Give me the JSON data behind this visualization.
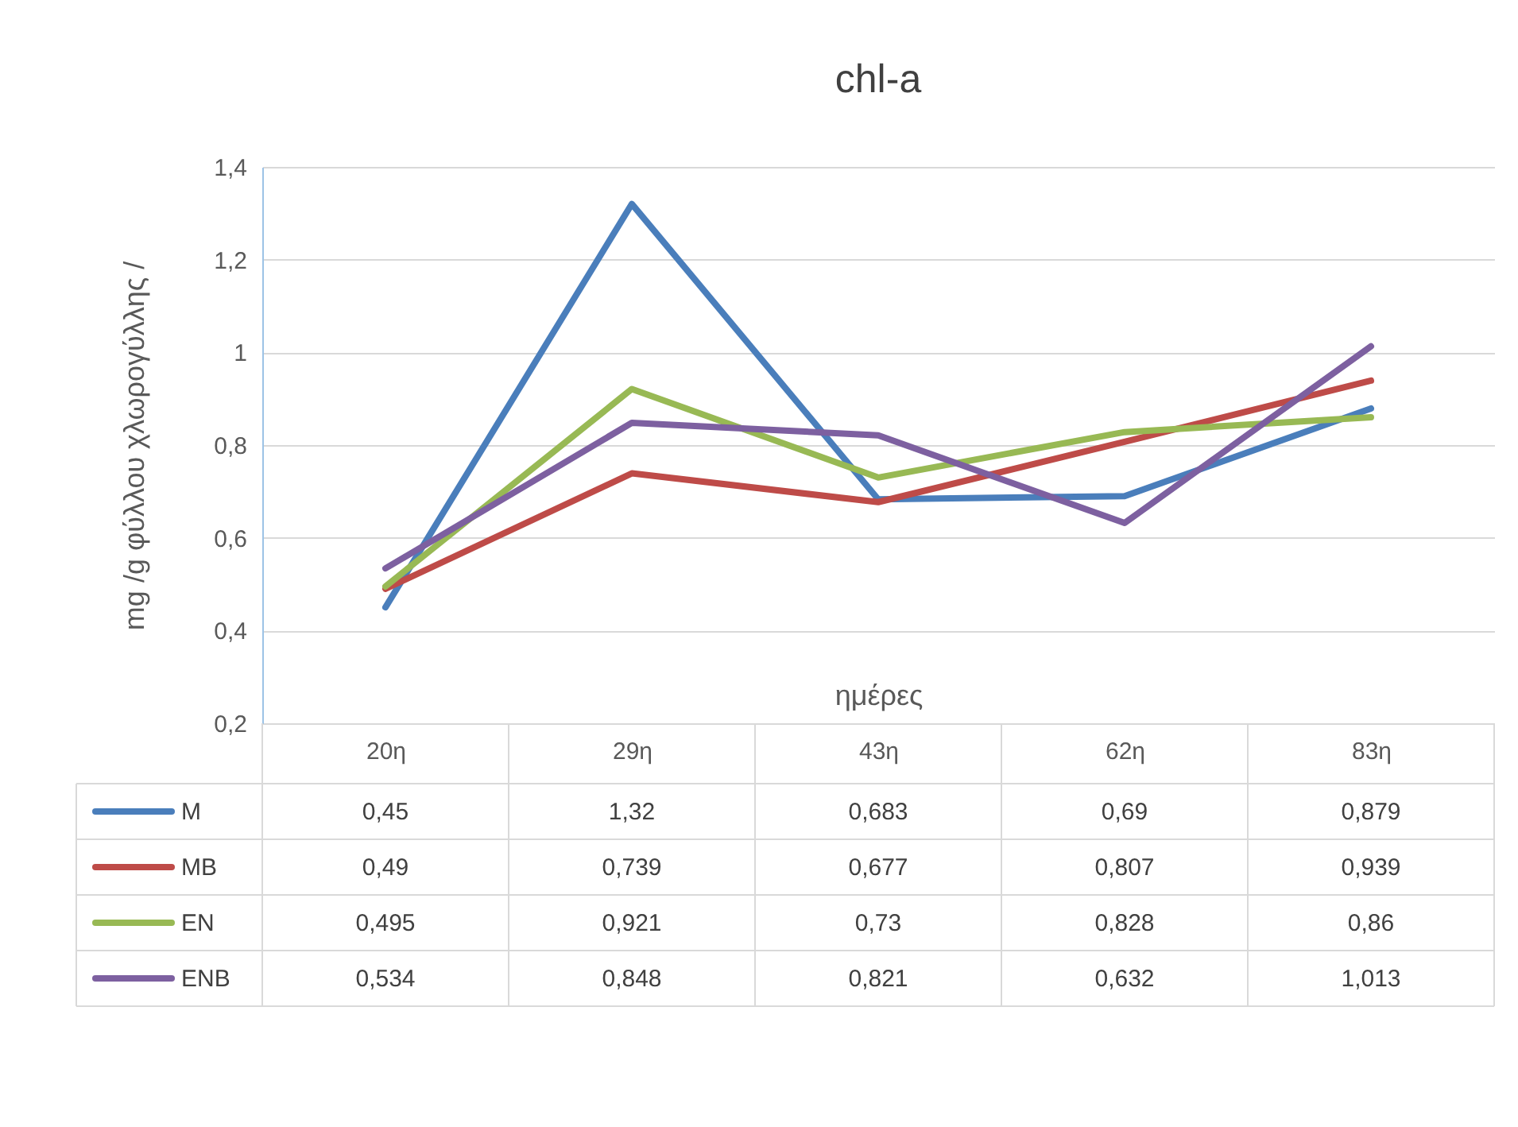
{
  "chart_data": {
    "type": "line",
    "title": "chl-a",
    "xlabel": "ημέρες",
    "ylabel": "mg /g φύλλου χλωρογύλλης /",
    "categories": [
      "20η",
      "29η",
      "43η",
      "62η",
      "83η"
    ],
    "series": [
      {
        "name": "M",
        "color": "#4a7ebb",
        "values": [
          0.45,
          1.32,
          0.683,
          0.69,
          0.879
        ],
        "value_labels": [
          "0,45",
          "1,32",
          "0,683",
          "0,69",
          "0,879"
        ]
      },
      {
        "name": "MB",
        "color": "#be4b48",
        "values": [
          0.49,
          0.739,
          0.677,
          0.807,
          0.939
        ],
        "value_labels": [
          "0,49",
          "0,739",
          "0,677",
          "0,807",
          "0,939"
        ]
      },
      {
        "name": "EN",
        "color": "#98b954",
        "values": [
          0.495,
          0.921,
          0.73,
          0.828,
          0.86
        ],
        "value_labels": [
          "0,495",
          "0,921",
          "0,73",
          "0,828",
          "0,86"
        ]
      },
      {
        "name": "ENB",
        "color": "#7d60a0",
        "values": [
          0.534,
          0.848,
          0.821,
          0.632,
          1.013
        ],
        "value_labels": [
          "0,534",
          "0,848",
          "0,821",
          "0,632",
          "1,013"
        ]
      }
    ],
    "ylim": [
      0.2,
      1.4
    ],
    "yticks": [
      {
        "value": 0.2,
        "label": "0,2"
      },
      {
        "value": 0.4,
        "label": "0,4"
      },
      {
        "value": 0.6,
        "label": "0,6"
      },
      {
        "value": 0.8,
        "label": "0,8"
      },
      {
        "value": 1,
        "label": "1"
      },
      {
        "value": 1.2,
        "label": "1,2"
      },
      {
        "value": 1.4,
        "label": "1,4"
      }
    ],
    "grid": "y",
    "legend": "bottom",
    "marker": "none",
    "line_style": "solid"
  }
}
